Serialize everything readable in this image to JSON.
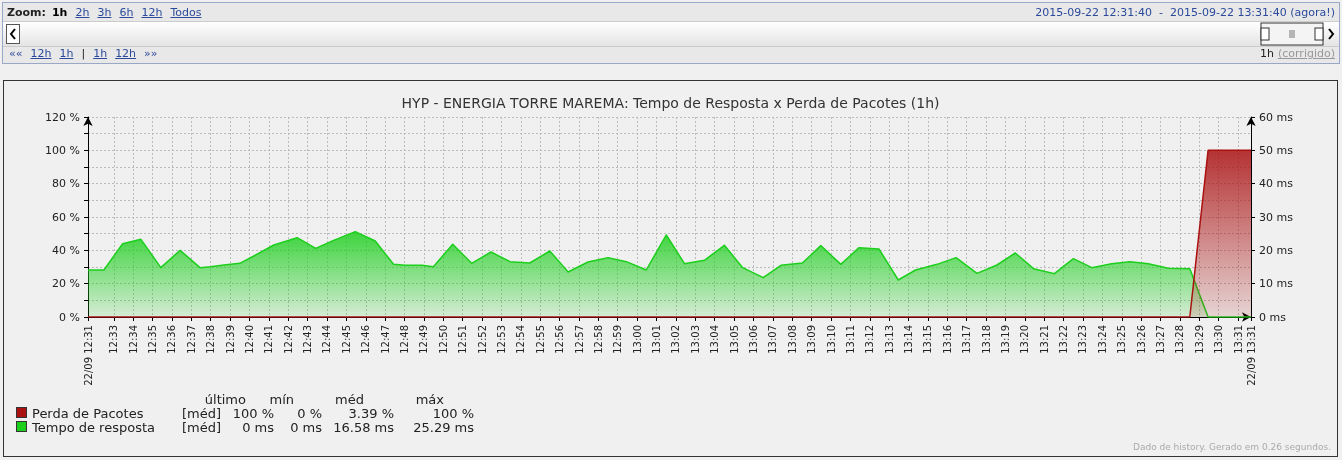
{
  "chart_data": {
    "type": "area",
    "title": "HYP - ENERGIA TORRE MAREMA: Tempo de Resposta x Perda de Pacotes (1h)",
    "series": [
      {
        "name": "Perda de Pacotes",
        "color": "#aa1111",
        "x": [
          12.5278,
          13.4752,
          13.4909,
          13.5278
        ],
        "values": [
          0,
          0,
          100,
          100
        ]
      },
      {
        "name": "Tempo de resposta",
        "color": "#1ccf1c",
        "axis": "y2",
        "x": [
          12.5278,
          12.5415,
          12.5576,
          12.5733,
          12.5904,
          12.607,
          12.6241,
          12.6333,
          12.6447,
          12.6584,
          12.6704,
          12.6876,
          12.7076,
          12.7236,
          12.739,
          12.7576,
          12.7748,
          12.7905,
          12.8005,
          12.8148,
          12.8248,
          12.8414,
          12.8577,
          12.8743,
          12.8906,
          12.9077,
          12.9249,
          12.9406,
          12.9577,
          12.9749,
          12.9907,
          13.0078,
          13.025,
          13.0407,
          13.0578,
          13.075,
          13.0907,
          13.1084,
          13.1236,
          13.1421,
          13.1579,
          13.1751,
          13.1908,
          13.2079,
          13.2245,
          13.2394,
          13.2579,
          13.2742,
          13.2922,
          13.3094,
          13.3251,
          13.3408,
          13.3588,
          13.3751,
          13.3908,
          13.408,
          13.4238,
          13.4395,
          13.4566,
          13.4752,
          13.4909,
          13.5278
        ],
        "values": [
          14.1,
          14.1,
          22.0,
          23.3,
          14.8,
          20.0,
          14.8,
          15.1,
          15.6,
          16.1,
          18.3,
          21.6,
          23.8,
          20.6,
          23.0,
          25.6,
          22.8,
          15.8,
          15.5,
          15.5,
          15.1,
          21.8,
          16.1,
          19.5,
          16.6,
          16.2,
          19.8,
          13.5,
          16.5,
          17.8,
          16.6,
          14.1,
          24.6,
          16.0,
          17.0,
          21.5,
          14.8,
          11.8,
          15.5,
          16.2,
          21.4,
          15.8,
          20.8,
          20.4,
          11.1,
          14.1,
          15.8,
          17.8,
          13.1,
          15.6,
          19.2,
          14.5,
          13.0,
          17.5,
          14.8,
          16.0,
          16.6,
          16.0,
          14.6,
          14.5,
          0,
          0
        ]
      }
    ],
    "xlim": [
      12.5278,
      13.5278
    ],
    "xticks": [
      {
        "value": 12.5278,
        "label": "22/09 12:31"
      },
      {
        "value": 12.55,
        "label": "12:33"
      },
      {
        "value": 12.5667,
        "label": "12:34"
      },
      {
        "value": 12.5833,
        "label": "12:35"
      },
      {
        "value": 12.6,
        "label": "12:36"
      },
      {
        "value": 12.6167,
        "label": "12:37"
      },
      {
        "value": 12.6333,
        "label": "12:38"
      },
      {
        "value": 12.65,
        "label": "12:39"
      },
      {
        "value": 12.6667,
        "label": "12:40"
      },
      {
        "value": 12.6833,
        "label": "12:41"
      },
      {
        "value": 12.7,
        "label": "12:42"
      },
      {
        "value": 12.7167,
        "label": "12:43"
      },
      {
        "value": 12.7333,
        "label": "12:44"
      },
      {
        "value": 12.75,
        "label": "12:45"
      },
      {
        "value": 12.7667,
        "label": "12:46"
      },
      {
        "value": 12.7833,
        "label": "12:47"
      },
      {
        "value": 12.8,
        "label": "12:48"
      },
      {
        "value": 12.8167,
        "label": "12:49"
      },
      {
        "value": 12.8333,
        "label": "12:50"
      },
      {
        "value": 12.85,
        "label": "12:51"
      },
      {
        "value": 12.8667,
        "label": "12:52"
      },
      {
        "value": 12.8833,
        "label": "12:53"
      },
      {
        "value": 12.9,
        "label": "12:54"
      },
      {
        "value": 12.9167,
        "label": "12:55"
      },
      {
        "value": 12.9333,
        "label": "12:56"
      },
      {
        "value": 12.95,
        "label": "12:57"
      },
      {
        "value": 12.9667,
        "label": "12:58"
      },
      {
        "value": 12.9833,
        "label": "12:59"
      },
      {
        "value": 13,
        "label": "13:00"
      },
      {
        "value": 13.0167,
        "label": "13:01"
      },
      {
        "value": 13.0333,
        "label": "13:02"
      },
      {
        "value": 13.05,
        "label": "13:03"
      },
      {
        "value": 13.0667,
        "label": "13:04"
      },
      {
        "value": 13.0833,
        "label": "13:05"
      },
      {
        "value": 13.1,
        "label": "13:06"
      },
      {
        "value": 13.1167,
        "label": "13:07"
      },
      {
        "value": 13.1333,
        "label": "13:08"
      },
      {
        "value": 13.15,
        "label": "13:09"
      },
      {
        "value": 13.1667,
        "label": "13:10"
      },
      {
        "value": 13.1833,
        "label": "13:11"
      },
      {
        "value": 13.2,
        "label": "13:12"
      },
      {
        "value": 13.2167,
        "label": "13:13"
      },
      {
        "value": 13.2333,
        "label": "13:14"
      },
      {
        "value": 13.25,
        "label": "13:15"
      },
      {
        "value": 13.2667,
        "label": "13:16"
      },
      {
        "value": 13.2833,
        "label": "13:17"
      },
      {
        "value": 13.3,
        "label": "13:18"
      },
      {
        "value": 13.3167,
        "label": "13:19"
      },
      {
        "value": 13.3333,
        "label": "13:20"
      },
      {
        "value": 13.35,
        "label": "13:21"
      },
      {
        "value": 13.3667,
        "label": "13:22"
      },
      {
        "value": 13.3833,
        "label": "13:23"
      },
      {
        "value": 13.4,
        "label": "13:24"
      },
      {
        "value": 13.4167,
        "label": "13:25"
      },
      {
        "value": 13.4333,
        "label": "13:26"
      },
      {
        "value": 13.45,
        "label": "13:27"
      },
      {
        "value": 13.4667,
        "label": "13:28"
      },
      {
        "value": 13.4833,
        "label": "13:29"
      },
      {
        "value": 13.5,
        "label": "13:30"
      },
      {
        "value": 13.5167,
        "label": "13:31"
      },
      {
        "value": 13.5278,
        "label": "22/09 13:31"
      }
    ],
    "ylim": [
      0,
      120
    ],
    "yticks": [
      {
        "value": 0,
        "label": "0 %"
      },
      {
        "value": 10,
        "label": null
      },
      {
        "value": 20,
        "label": "20 %"
      },
      {
        "value": 30,
        "label": null
      },
      {
        "value": 40,
        "label": "40 %"
      },
      {
        "value": 50,
        "label": null
      },
      {
        "value": 60,
        "label": "60 %"
      },
      {
        "value": 70,
        "label": null
      },
      {
        "value": 80,
        "label": "80 %"
      },
      {
        "value": 90,
        "label": null
      },
      {
        "value": 100,
        "label": "100 %"
      },
      {
        "value": 110,
        "label": null
      },
      {
        "value": 120,
        "label": "120 %"
      }
    ],
    "y2lim": [
      0,
      60
    ],
    "y2ticks": [
      {
        "value": 0,
        "label": "0 ms"
      },
      {
        "value": 10,
        "label": "10 ms"
      },
      {
        "value": 20,
        "label": "20 ms"
      },
      {
        "value": 30,
        "label": "30 ms"
      },
      {
        "value": 40,
        "label": "40 ms"
      },
      {
        "value": 50,
        "label": "50 ms"
      },
      {
        "value": 60,
        "label": "60 ms"
      }
    ],
    "grid": true,
    "legend": "bottom",
    "annotations": [
      "Zoom:",
      "1h",
      "2h",
      "3h",
      "6h",
      "12h",
      "Todos",
      "2015-09-22 12:31:40  -  2015-09-22 13:31:40 (agora!)",
      "««",
      "12h",
      "1h",
      "|",
      "1h",
      "12h",
      "»»",
      "1h",
      "(corrigido)",
      "último",
      "mín",
      "méd",
      "máx",
      "[méd]",
      "100 %",
      "0 %",
      "3.39 %",
      "100 %",
      "[méd]",
      "0 ms",
      "0 ms",
      "16.58 ms",
      "25.29 ms",
      "Dado de history. Gerado em 0.26 segundos."
    ]
  }
}
